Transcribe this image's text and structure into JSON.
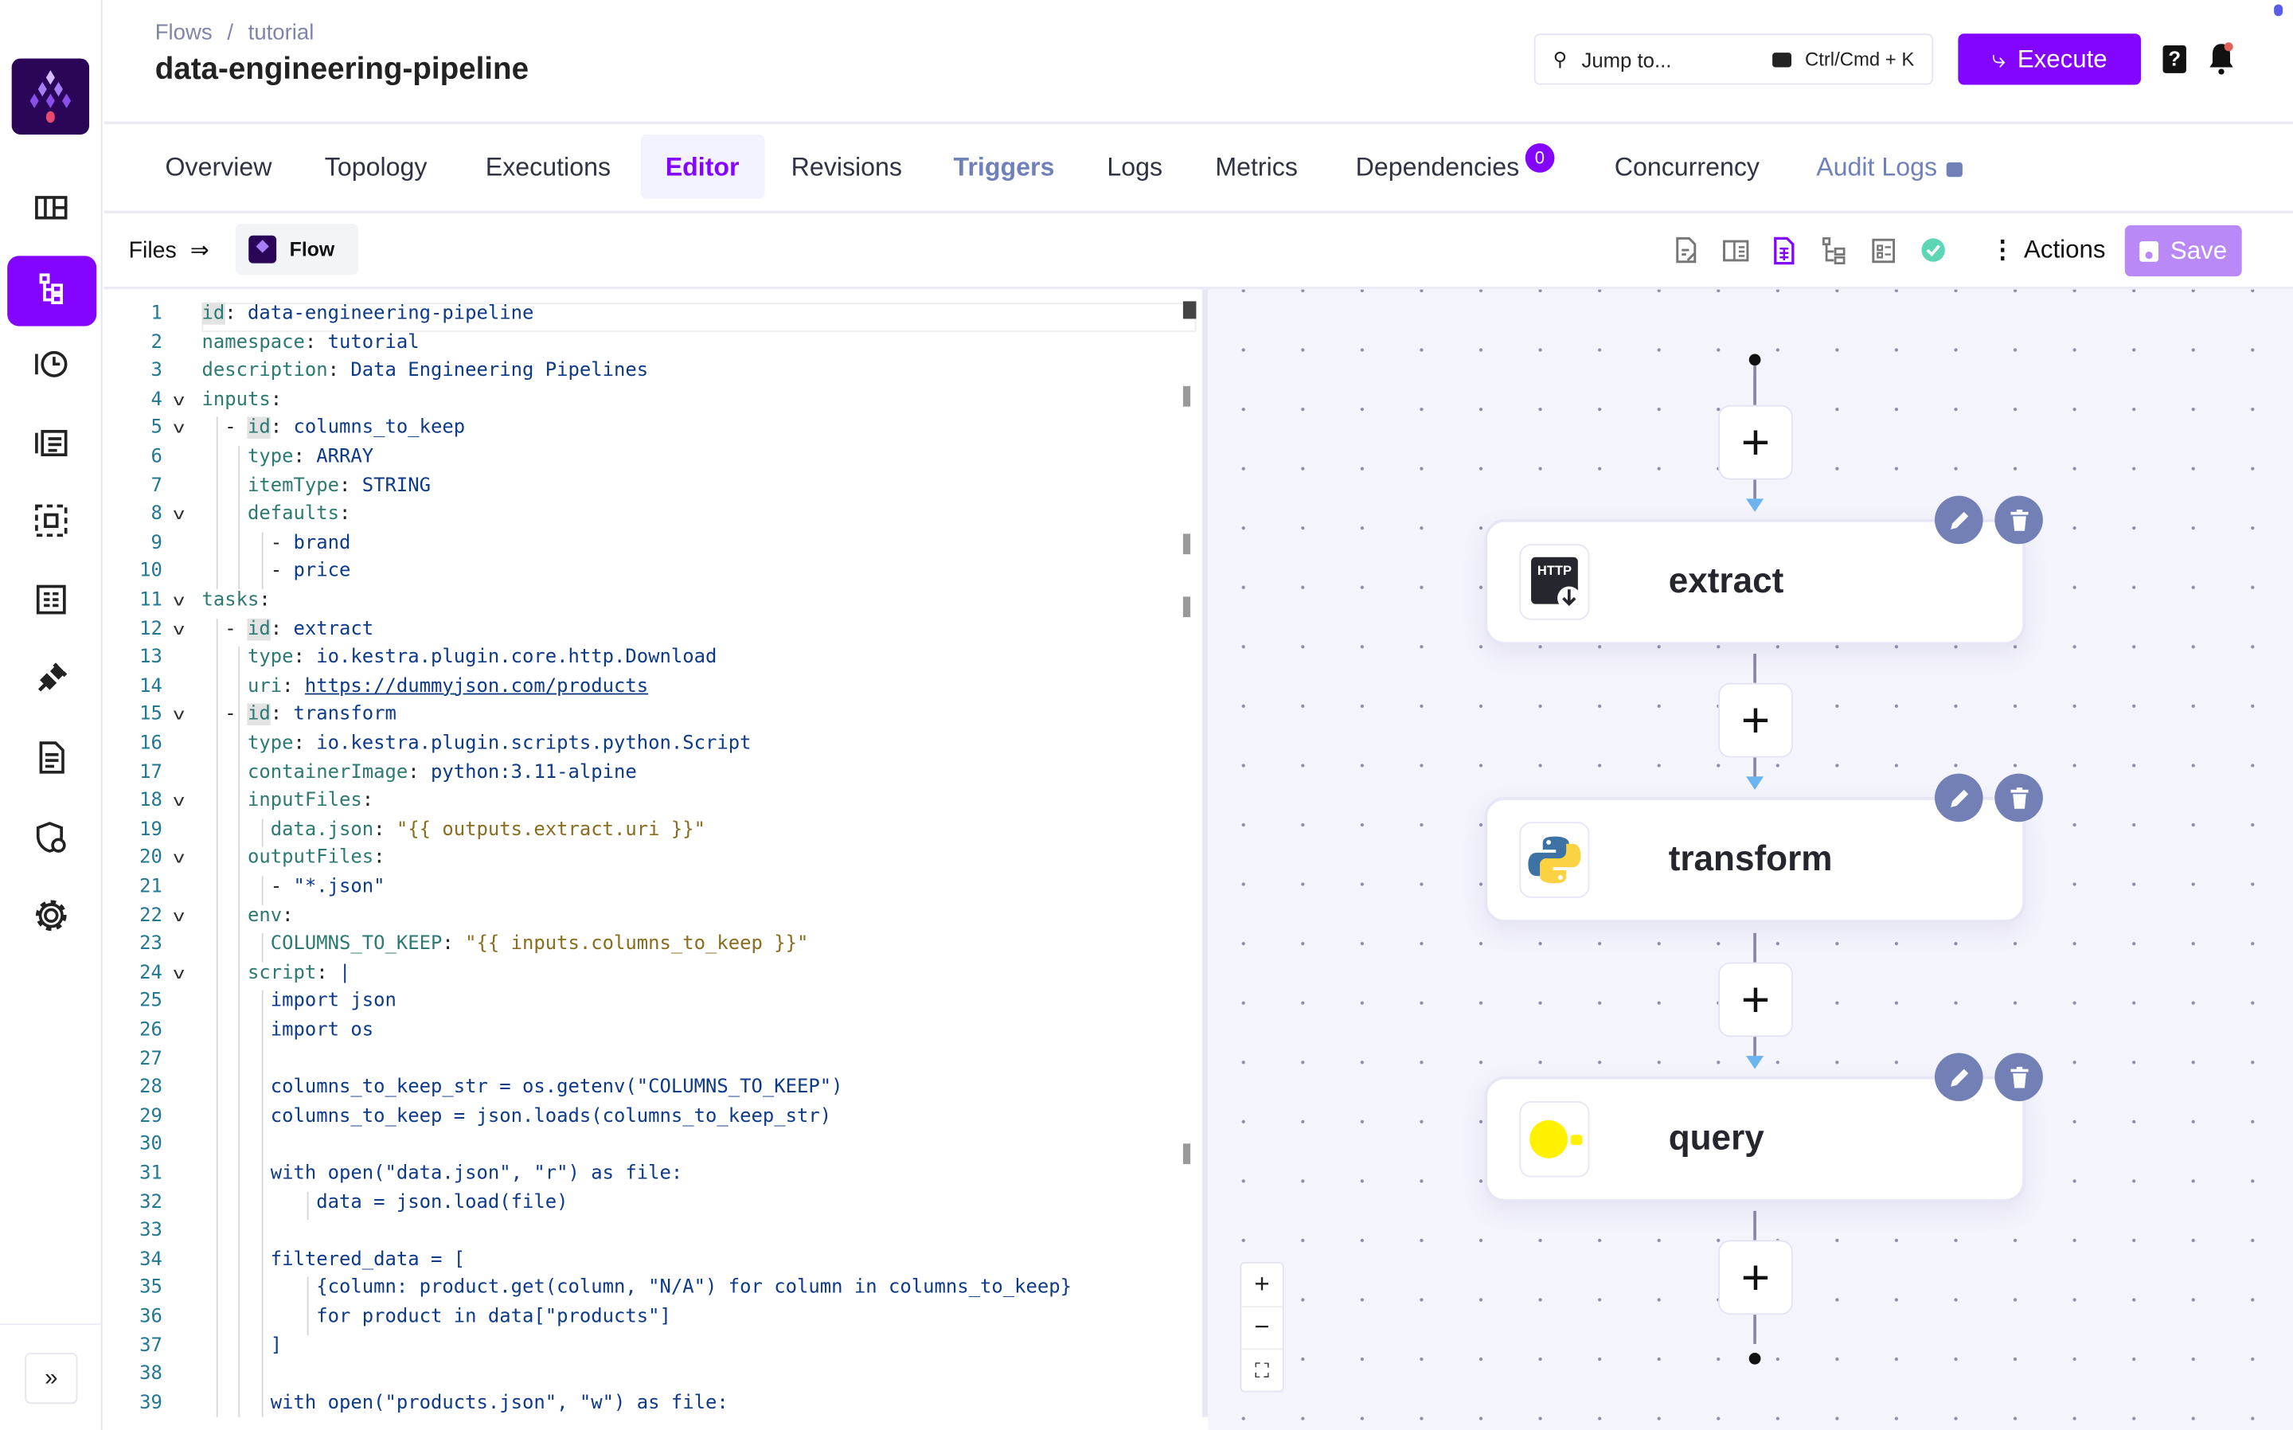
{
  "colors": {
    "brand": "#8405ff",
    "brand_dark": "#2a0558",
    "save_disabled": "#b98af7",
    "node_action": "#7380b5",
    "success": "#5cd6b4"
  },
  "breadcrumb": {
    "items": [
      "Flows",
      "tutorial"
    ],
    "separator": "/"
  },
  "header": {
    "title": "data-engineering-pipeline",
    "jump_placeholder": "Jump to...",
    "shortcut": "Ctrl/Cmd + K",
    "execute_label": "Execute",
    "help_icon": "question-icon",
    "bell_icon": "bell-icon"
  },
  "sidebar": {
    "items": [
      {
        "name": "dashboard",
        "icon": "dashboard-icon"
      },
      {
        "name": "flows",
        "icon": "flows-icon",
        "active": true
      },
      {
        "name": "templates-history",
        "icon": "history-icon"
      },
      {
        "name": "executions",
        "icon": "list-icon"
      },
      {
        "name": "namespaces",
        "icon": "namespace-icon"
      },
      {
        "name": "logs",
        "icon": "logs-icon"
      },
      {
        "name": "plugins",
        "icon": "plug-icon"
      },
      {
        "name": "blueprints",
        "icon": "document-icon"
      },
      {
        "name": "administration",
        "icon": "shield-icon"
      },
      {
        "name": "settings",
        "icon": "gear-icon"
      }
    ],
    "collapse_label": "»"
  },
  "tabs": [
    {
      "label": "Overview"
    },
    {
      "label": "Topology"
    },
    {
      "label": "Executions"
    },
    {
      "label": "Editor",
      "active": true
    },
    {
      "label": "Revisions"
    },
    {
      "label": "Triggers"
    },
    {
      "label": "Logs"
    },
    {
      "label": "Metrics"
    },
    {
      "label": "Dependencies",
      "badge": "0"
    },
    {
      "label": "Concurrency"
    },
    {
      "label": "Audit Logs",
      "locked": true
    }
  ],
  "toolbar": {
    "files_label": "Files",
    "flow_tab_label": "Flow",
    "actions_label": "Actions",
    "save_label": "Save",
    "view_icons": [
      "edit-source-icon",
      "split-view-icon",
      "source-only-icon",
      "topology-icon",
      "documentation-icon",
      "validation-ok-icon"
    ]
  },
  "editor": {
    "lines": [
      "id: data-engineering-pipeline",
      "namespace: tutorial",
      "description: Data Engineering Pipelines",
      "inputs:",
      "  - id: columns_to_keep",
      "    type: ARRAY",
      "    itemType: STRING",
      "    defaults:",
      "      - brand",
      "      - price",
      "tasks:",
      "  - id: extract",
      "    type: io.kestra.plugin.core.http.Download",
      "    uri: https://dummyjson.com/products",
      "  - id: transform",
      "    type: io.kestra.plugin.scripts.python.Script",
      "    containerImage: python:3.11-alpine",
      "    inputFiles:",
      "      data.json: \"{{ outputs.extract.uri }}\"",
      "    outputFiles:",
      "      - \"*.json\"",
      "    env:",
      "      COLUMNS_TO_KEEP: \"{{ inputs.columns_to_keep }}\"",
      "    script: |",
      "      import json",
      "      import os",
      "",
      "      columns_to_keep_str = os.getenv(\"COLUMNS_TO_KEEP\")",
      "      columns_to_keep = json.loads(columns_to_keep_str)",
      "",
      "      with open(\"data.json\", \"r\") as file:",
      "          data = json.load(file)",
      "",
      "      filtered_data = [",
      "          {column: product.get(column, \"N/A\") for column in columns_to_keep}",
      "          for product in data[\"products\"]",
      "      ]",
      "",
      "      with open(\"products.json\", \"w\") as file:"
    ],
    "foldable_lines": [
      4,
      5,
      8,
      11,
      12,
      15,
      18,
      20,
      22,
      24
    ],
    "script_start_line": 25
  },
  "topology": {
    "tasks": [
      {
        "id": "extract",
        "icon": "http-download-icon"
      },
      {
        "id": "transform",
        "icon": "python-icon"
      },
      {
        "id": "query",
        "icon": "duckdb-icon"
      }
    ],
    "zoom_in": "+",
    "zoom_out": "−",
    "fit": "⛶"
  }
}
